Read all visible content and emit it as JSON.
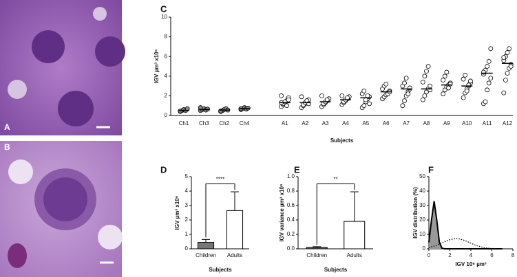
{
  "images": [
    {
      "label": "A"
    },
    {
      "label": "B"
    }
  ],
  "chart_data": [
    {
      "type": "strip",
      "label": "C",
      "y_label": "IGV µm³ x10⁶",
      "x_label": "Subjects",
      "categories": [
        "Ch1",
        "Ch3",
        "Ch2",
        "Ch4",
        null,
        "A1",
        "A2",
        "A3",
        "A4",
        "A5",
        "A6",
        "A7",
        "A8",
        "A9",
        "A10",
        "A11",
        "A12"
      ],
      "points": [
        [
          0.4,
          0.5,
          0.6,
          0.5,
          0.7,
          0.45
        ],
        [
          0.5,
          0.6,
          0.7,
          0.55,
          0.65,
          0.8
        ],
        [
          0.4,
          0.5,
          0.6,
          0.7,
          0.55,
          0.45
        ],
        [
          0.6,
          0.7,
          0.8,
          0.65,
          0.75,
          0.7
        ],
        [],
        [
          0.9,
          1.1,
          1.3,
          1.5,
          1.8,
          2.0,
          1.2,
          1.4,
          1.0,
          1.6,
          1.3
        ],
        [
          0.8,
          1.0,
          1.2,
          1.4,
          1.6,
          1.9,
          1.1,
          1.3,
          1.5,
          1.2
        ],
        [
          0.9,
          1.1,
          1.3,
          1.5,
          1.7,
          2.0,
          1.2,
          1.4,
          1.6
        ],
        [
          1.1,
          1.3,
          1.5,
          1.7,
          1.9,
          2.0,
          1.4,
          1.6,
          1.8
        ],
        [
          0.8,
          1.0,
          1.4,
          1.7,
          1.9,
          2.2,
          2.5,
          1.6,
          2.0,
          1.2
        ],
        [
          1.7,
          1.9,
          2.1,
          2.3,
          2.5,
          2.7,
          3.0,
          3.2,
          2.2,
          2.4
        ],
        [
          1.0,
          1.5,
          2.0,
          2.4,
          2.7,
          3.0,
          3.3,
          3.8,
          2.2,
          2.8
        ],
        [
          1.6,
          2.0,
          2.4,
          2.7,
          3.0,
          3.4,
          4.0,
          4.5,
          5.0,
          2.6
        ],
        [
          2.2,
          2.6,
          2.9,
          3.1,
          3.3,
          3.6,
          4.0,
          4.4,
          2.8,
          3.2
        ],
        [
          1.8,
          2.3,
          2.7,
          3.0,
          3.3,
          3.7,
          4.1,
          2.5,
          3.1,
          3.5
        ],
        [
          1.2,
          1.4,
          2.6,
          3.3,
          3.8,
          4.2,
          4.6,
          5.0,
          5.5,
          6.8,
          4.4
        ],
        [
          2.3,
          3.6,
          4.3,
          4.8,
          5.2,
          5.6,
          6.0,
          6.4,
          6.8,
          5.0,
          5.9
        ]
      ],
      "medians": [
        0.5,
        0.6,
        0.55,
        0.7,
        null,
        1.3,
        1.3,
        1.4,
        1.6,
        1.8,
        2.4,
        2.7,
        2.7,
        3.1,
        3.0,
        4.3,
        5.3
      ],
      "marker_fills": [
        "#888888",
        "#888888",
        "#888888",
        "#888888",
        null,
        "#ffffff",
        "#ffffff",
        "#ffffff",
        "#ffffff",
        "#ffffff",
        "#ffffff",
        "#ffffff",
        "#ffffff",
        "#ffffff",
        "#ffffff",
        "#ffffff",
        "#ffffff"
      ],
      "ylim": [
        0,
        10
      ],
      "yticks": [
        0,
        2,
        4,
        6,
        8,
        10
      ]
    },
    {
      "type": "bar",
      "label": "D",
      "y_label": "IGV µm³ x10⁶",
      "x_label": "Subjects",
      "categories": [
        "Children",
        "Adults"
      ],
      "values": [
        0.45,
        2.65
      ],
      "errors": [
        0.2,
        1.3
      ],
      "colors": [
        "#777777",
        "#ffffff"
      ],
      "significance": "****",
      "ylim": [
        0,
        5
      ],
      "yticks": [
        0,
        1,
        2,
        3,
        4,
        5
      ]
    },
    {
      "type": "bar",
      "label": "E",
      "y_label": "IGV variance µm³ x10⁶",
      "x_label": "Subjects",
      "categories": [
        "Children",
        "Adults"
      ],
      "values": [
        0.02,
        0.38
      ],
      "errors": [
        0.01,
        0.41
      ],
      "colors": [
        "#777777",
        "#ffffff"
      ],
      "significance": "**",
      "ylim": [
        0,
        1
      ],
      "yticks": [
        {
          "value": 0,
          "label": "0.0"
        },
        0.2,
        0.4,
        0.6,
        0.8,
        {
          "value": 1,
          "label": "1.0"
        }
      ]
    },
    {
      "type": "line",
      "label": "F",
      "y_label": "IGV distribution (%)",
      "x_label": "IGV 10⁶ µm³",
      "x": [
        0,
        0.25,
        0.5,
        0.75,
        1,
        1.25,
        1.5,
        1.75,
        2,
        2.25,
        2.5,
        2.75,
        3,
        3.25,
        3.5,
        3.75,
        4,
        4.25,
        4.5,
        4.75,
        5,
        5.25,
        5.5,
        5.75,
        6,
        6.25,
        6.5,
        6.75,
        7
      ],
      "series": [
        {
          "color": "#000000",
          "fill": "#999999",
          "dash": "solid",
          "values": [
            4.5,
            20,
            33,
            20,
            4.5,
            0.4,
            0,
            0,
            0,
            0,
            0,
            0,
            0,
            0,
            0,
            0,
            0,
            0,
            0,
            0,
            0,
            0,
            0,
            0,
            0,
            0,
            0,
            0,
            0
          ]
        },
        {
          "color": "#000000",
          "fill": null,
          "dash": "dotted",
          "values": [
            0.95,
            1.4,
            1.9,
            2.5,
            3.3,
            4.1,
            4.9,
            5.7,
            6.3,
            6.7,
            7.0,
            7.0,
            6.7,
            6.2,
            5.5,
            4.7,
            3.9,
            3.1,
            2.4,
            1.8,
            1.3,
            0.9,
            0.6,
            0.4,
            0.2,
            0.1,
            0.1,
            0,
            0
          ]
        }
      ],
      "xlim": [
        0,
        8
      ],
      "xticks": [
        0,
        2,
        4,
        6,
        8
      ],
      "ylim": [
        0,
        50
      ],
      "yticks": [
        0,
        10,
        20,
        30,
        40,
        50
      ]
    }
  ]
}
